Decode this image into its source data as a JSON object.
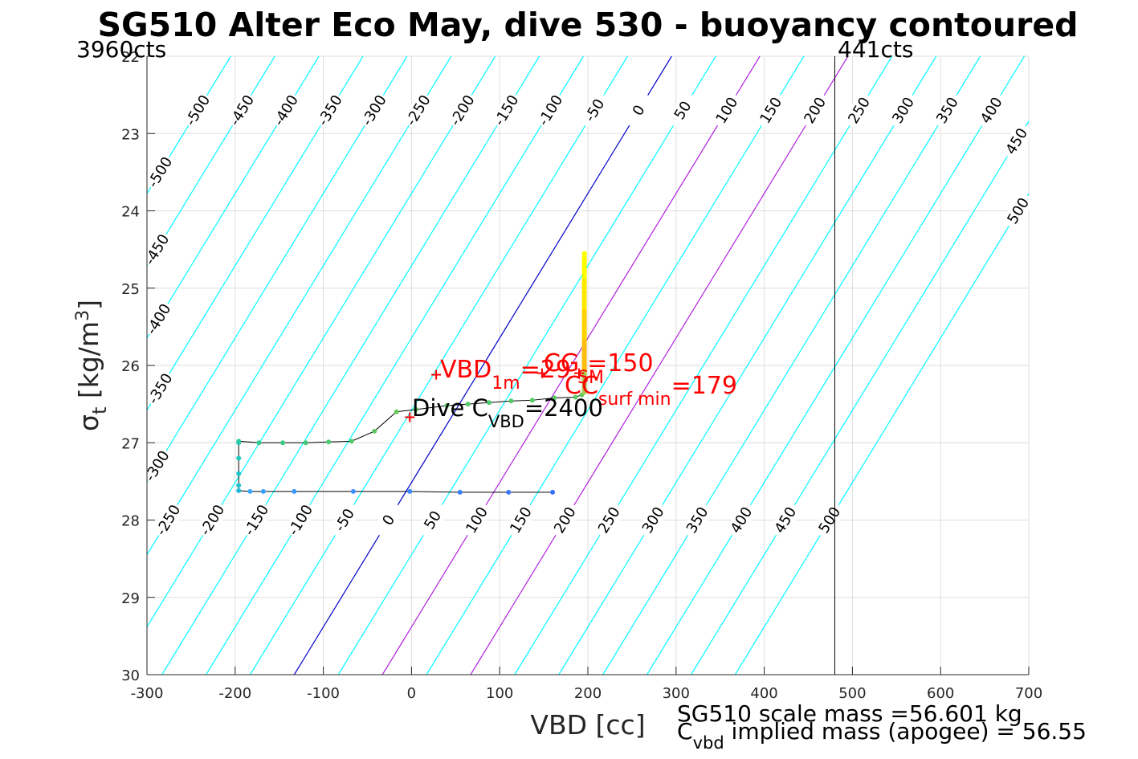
{
  "chart_data": {
    "type": "line",
    "title": "SG510 Alter Eco May, dive 530 - buoyancy contoured",
    "xlabel": "VBD [cc]",
    "ylabel": {
      "main": "σ",
      "sub": "t",
      "unit": " [kg/m",
      "sup": "3",
      "close": "]"
    },
    "xlim": [
      -300,
      700
    ],
    "ylim": [
      22,
      30
    ],
    "y_reversed": true,
    "grid": true,
    "xticks": [
      "-300",
      "-200",
      "-100",
      "0",
      "100",
      "200",
      "300",
      "400",
      "500",
      "600",
      "700"
    ],
    "yticks": [
      "22",
      "23",
      "24",
      "25",
      "26",
      "27",
      "28",
      "29",
      "30"
    ],
    "vbd_limits": {
      "min_label": "3960cts",
      "min_vbd": -300,
      "max_label": "441cts",
      "max_vbd": 480
    },
    "buoyancy_contours": {
      "levels": [
        -500,
        -450,
        -400,
        -350,
        -300,
        -250,
        -200,
        -150,
        -100,
        -50,
        0,
        50,
        100,
        150,
        200,
        250,
        300,
        350,
        400,
        450,
        500
      ],
      "labels": [
        "-500",
        "-450",
        "-400",
        "-350",
        "-300",
        "-250",
        "-200",
        "-150",
        "-100",
        "-50",
        "0",
        "50",
        "100",
        "150",
        "200",
        "250",
        "300",
        "350",
        "400",
        "450",
        "500"
      ],
      "zero_at_sigma22": 295,
      "zero_at_sigma30": -133,
      "cc_per_level": 50,
      "highlight": {
        "zero": "#0000cc",
        "purple": [
          100,
          200
        ],
        "default": "#00ffff"
      }
    },
    "series": [
      {
        "color": "#000000",
        "points": [
          [
            160,
            27.64
          ],
          [
            110,
            27.64
          ],
          [
            55,
            27.64
          ],
          [
            -2,
            27.63
          ],
          [
            -66,
            27.63
          ],
          [
            -133,
            27.63
          ],
          [
            -168,
            27.63
          ],
          [
            -183,
            27.63
          ],
          [
            -196,
            27.62
          ],
          [
            -196,
            27.55
          ],
          [
            -196,
            27.4
          ],
          [
            -196,
            27.2
          ],
          [
            -196,
            27.0
          ],
          [
            -196,
            26.98
          ],
          [
            -173,
            27.0
          ],
          [
            -146,
            27.0
          ],
          [
            -120,
            27.0
          ],
          [
            -94,
            26.99
          ],
          [
            -68,
            26.98
          ],
          [
            -42,
            26.85
          ],
          [
            -17,
            26.6
          ],
          [
            5,
            26.57
          ],
          [
            40,
            26.52
          ],
          [
            64,
            26.5
          ],
          [
            88,
            26.48
          ],
          [
            113,
            26.46
          ],
          [
            137,
            26.45
          ],
          [
            162,
            26.42
          ],
          [
            186,
            26.41
          ],
          [
            193,
            26.38
          ]
        ],
        "dot_colors": [
          "#3a70ff",
          "#3a76ff",
          "#3a80ff",
          "#3a88ff",
          "#3a90ff",
          "#3a98ff",
          "#3aa0ff",
          "#3aa8ff",
          "#20b8d8",
          "#20c0d0",
          "#20c4c8",
          "#20c8c0",
          "#25c8b0",
          "#30c8a0",
          "#35c890",
          "#40c880",
          "#45c878",
          "#50c870",
          "#55c868",
          "#60c860",
          "#65c858",
          "#60c860",
          "#5ac865",
          "#55c868",
          "#50c86c",
          "#55c866",
          "#58c864",
          "#5cc862",
          "#60c860",
          "#65c858"
        ]
      },
      {
        "color": "#e8c020",
        "points": [
          [
            196,
            24.55
          ],
          [
            196,
            24.9
          ],
          [
            196,
            25.3
          ],
          [
            196,
            25.7
          ],
          [
            196,
            26.1
          ],
          [
            196,
            26.35
          ]
        ],
        "colors": [
          "#ffff00",
          "#ffe800",
          "#ffd200",
          "#ffbd10",
          "#a8c850",
          "#60c860"
        ]
      }
    ],
    "markers": [
      {
        "label": "VBD 1m",
        "x": 28,
        "y": 26.12
      },
      {
        "label": "CG",
        "x": 148,
        "y": 26.1
      },
      {
        "label": "SM",
        "x": 190,
        "y": 26.1
      },
      {
        "label": "Dive",
        "x": -2,
        "y": 26.67
      }
    ],
    "annotations": {
      "vbd1m": {
        "main": "VBD",
        "sub": "1m",
        "value": "=29"
      },
      "cg": {
        "main": "CG",
        "value": "=150"
      },
      "sm": {
        "main": "SM"
      },
      "cc": {
        "main": "CC",
        "sub": "surf min",
        "value": "=179"
      },
      "dive": {
        "main": "Dive C",
        "sub": "VBD",
        "value": "=2400"
      }
    }
  },
  "footer": {
    "line1": "SG510 scale mass =56.601 kg",
    "line2_main": "C",
    "line2_sub": "vbd",
    "line2_rest": " implied mass (apogee) = 56.55"
  }
}
